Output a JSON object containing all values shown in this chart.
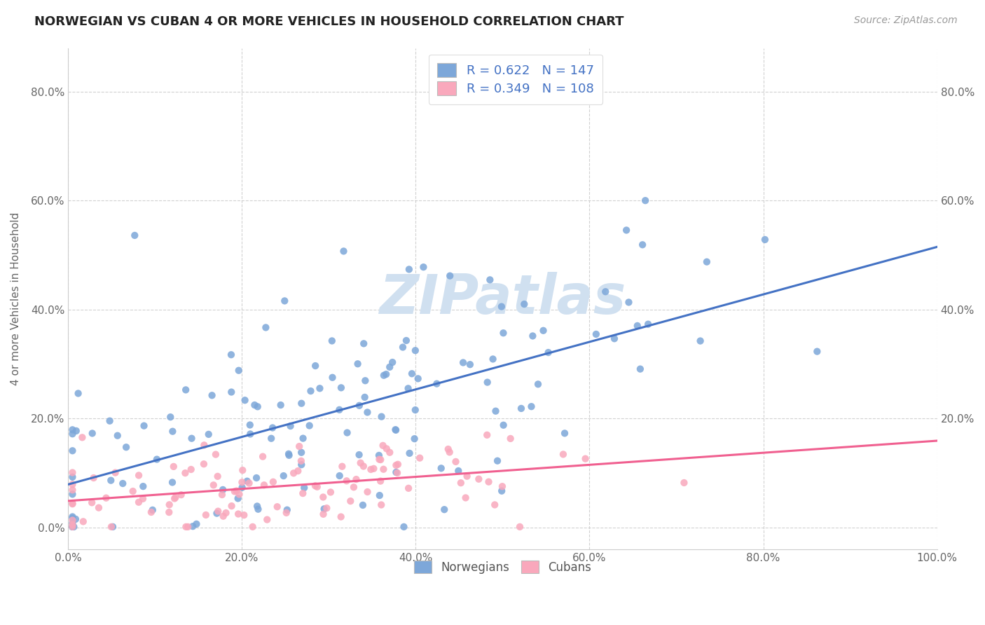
{
  "title": "NORWEGIAN VS CUBAN 4 OR MORE VEHICLES IN HOUSEHOLD CORRELATION CHART",
  "source": "Source: ZipAtlas.com",
  "ylabel": "4 or more Vehicles in Household",
  "xlim": [
    0.0,
    1.0
  ],
  "ylim": [
    -0.04,
    0.88
  ],
  "xticks": [
    0.0,
    0.2,
    0.4,
    0.6,
    0.8,
    1.0
  ],
  "xtick_labels": [
    "0.0%",
    "20.0%",
    "40.0%",
    "60.0%",
    "80.0%",
    "100.0%"
  ],
  "yticks": [
    0.0,
    0.2,
    0.4,
    0.6,
    0.8
  ],
  "ytick_labels": [
    "0.0%",
    "20.0%",
    "40.0%",
    "60.0%",
    "80.0%"
  ],
  "right_ytick_labels": [
    "",
    "20.0%",
    "40.0%",
    "60.0%",
    "80.0%"
  ],
  "norwegian_color": "#7da7d9",
  "cuban_color": "#f9a8bc",
  "norwegian_line_color": "#4472c4",
  "cuban_line_color": "#f06090",
  "legend_text_color": "#4472c4",
  "watermark": "ZIPatlas",
  "watermark_color": "#d0e0f0",
  "R_norwegian": 0.622,
  "N_norwegian": 147,
  "R_cuban": 0.349,
  "N_cuban": 108,
  "norwegian_seed": 42,
  "cuban_seed": 99,
  "background_color": "#ffffff",
  "grid_color": "#cccccc",
  "title_color": "#222222",
  "axis_label_color": "#666666"
}
